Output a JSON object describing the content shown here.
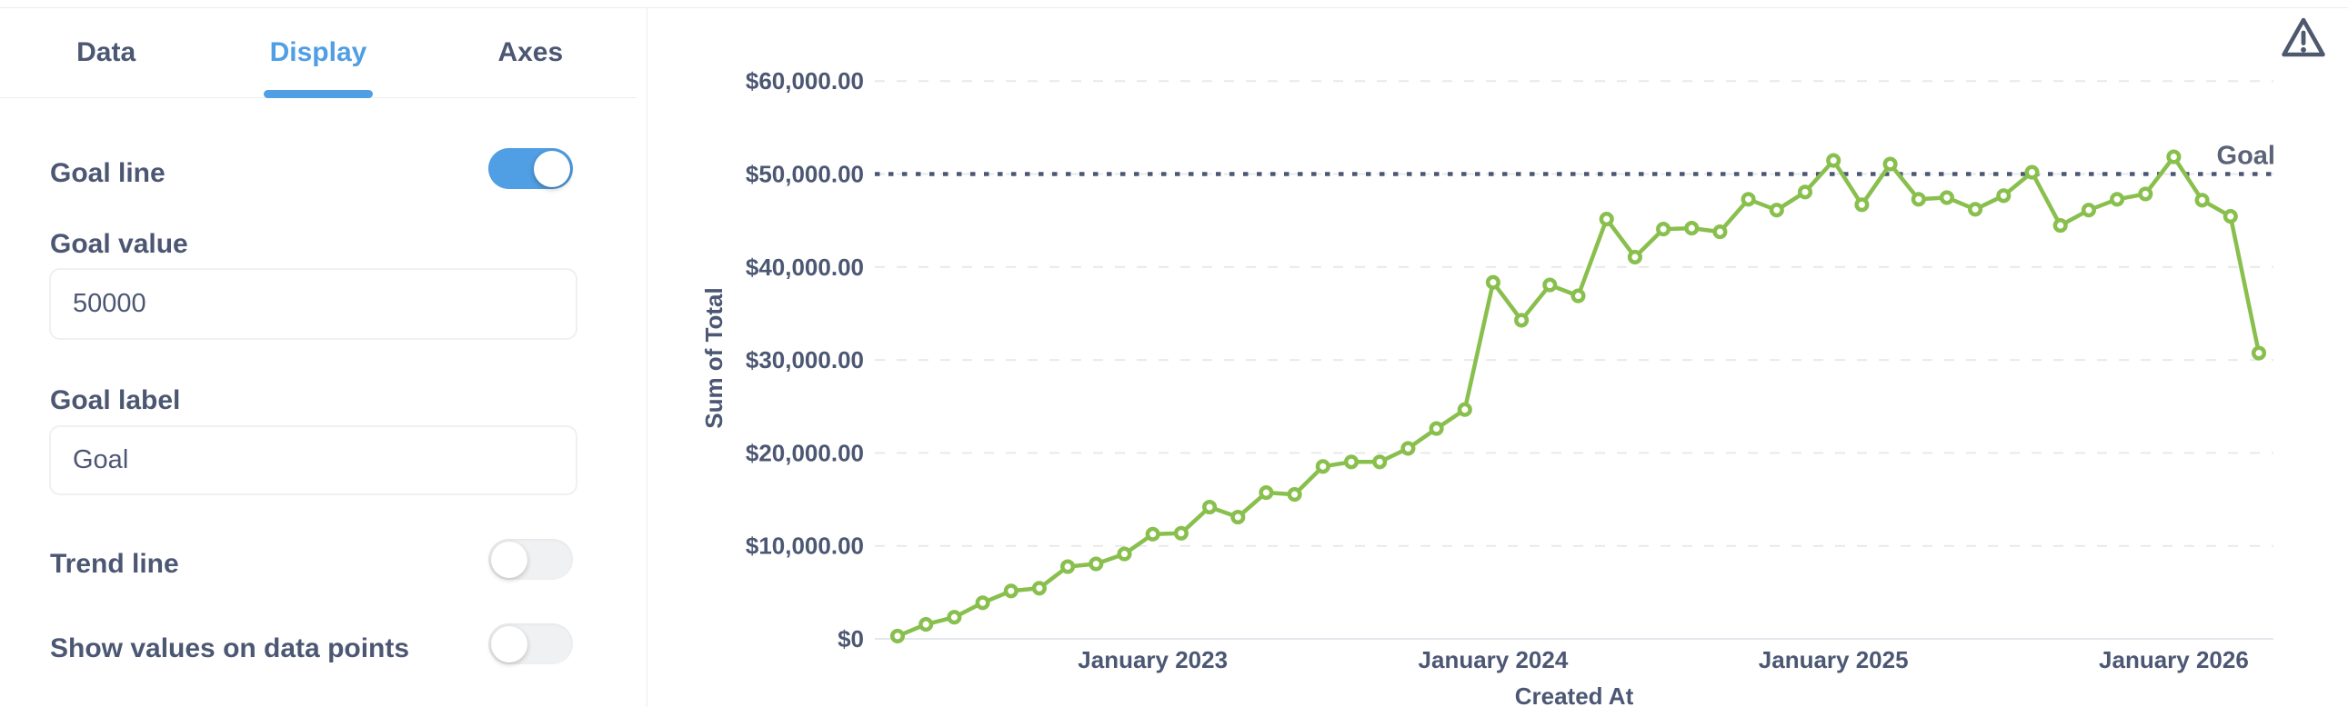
{
  "colors": {
    "brand_blue": "#509EE3",
    "series_green": "#88BF4D",
    "text_slate": "#4C5773",
    "goal_line": "#4C5773",
    "gridline": "#E7E9EB",
    "axis_line": "#E4E7EB",
    "hairline": "#EDEDED"
  },
  "sidebar": {
    "tabs": [
      {
        "label": "Data",
        "active": false
      },
      {
        "label": "Display",
        "active": true
      },
      {
        "label": "Axes",
        "active": false
      }
    ],
    "settings": {
      "goal_line": {
        "label": "Goal line",
        "enabled": true
      },
      "goal_value": {
        "label": "Goal value",
        "value": "50000"
      },
      "goal_label": {
        "label": "Goal label",
        "value": "Goal"
      },
      "trend_line": {
        "label": "Trend line",
        "enabled": false
      },
      "show_values": {
        "label": "Show values on data points",
        "enabled": false
      }
    }
  },
  "chart_data": {
    "type": "line",
    "title": "",
    "xlabel": "Created At",
    "ylabel": "Sum of Total",
    "legend": "none",
    "grid": "horizontal-dashed",
    "ylim": [
      0,
      60000
    ],
    "y_ticks": [
      {
        "label": "$0",
        "value": 0
      },
      {
        "label": "$10,000.00",
        "value": 10000
      },
      {
        "label": "$20,000.00",
        "value": 20000
      },
      {
        "label": "$30,000.00",
        "value": 30000
      },
      {
        "label": "$40,000.00",
        "value": 40000
      },
      {
        "label": "$50,000.00",
        "value": 50000
      },
      {
        "label": "$60,000.00",
        "value": 60000
      }
    ],
    "x_ticks": [
      "January 2023",
      "January 2024",
      "January 2025",
      "January 2026"
    ],
    "goal": {
      "value": 50000,
      "label": "Goal"
    },
    "categories": [
      "April 2022",
      "May 2022",
      "June 2022",
      "July 2022",
      "August 2022",
      "September 2022",
      "October 2022",
      "November 2022",
      "December 2022",
      "January 2023",
      "February 2023",
      "March 2023",
      "April 2023",
      "May 2023",
      "June 2023",
      "July 2023",
      "August 2023",
      "September 2023",
      "October 2023",
      "November 2023",
      "December 2023",
      "January 2024",
      "February 2024",
      "March 2024",
      "April 2024",
      "May 2024",
      "June 2024",
      "July 2024",
      "August 2024",
      "September 2024",
      "October 2024",
      "November 2024",
      "December 2024",
      "January 2025",
      "February 2025",
      "March 2025",
      "April 2025",
      "May 2025",
      "June 2025",
      "July 2025",
      "August 2025",
      "September 2025",
      "October 2025",
      "November 2025",
      "December 2025",
      "January 2026",
      "February 2026",
      "March 2026",
      "April 2026"
    ],
    "series": [
      {
        "name": "Sum of Total",
        "color": "#88BF4D",
        "marker": "circle-open",
        "values": [
          300,
          1550,
          2330,
          3880,
          5150,
          5440,
          7770,
          8060,
          9130,
          11260,
          11360,
          14170,
          13100,
          15730,
          15530,
          18540,
          19030,
          19030,
          20490,
          22620,
          24660,
          38350,
          34270,
          38060,
          36890,
          45150,
          41070,
          44080,
          44170,
          43780,
          47280,
          46120,
          48060,
          51460,
          46700,
          51070,
          47280,
          47470,
          46210,
          47670,
          50190,
          44470,
          46120,
          47280,
          47860,
          51850,
          47180,
          45440,
          30740
        ]
      }
    ]
  }
}
